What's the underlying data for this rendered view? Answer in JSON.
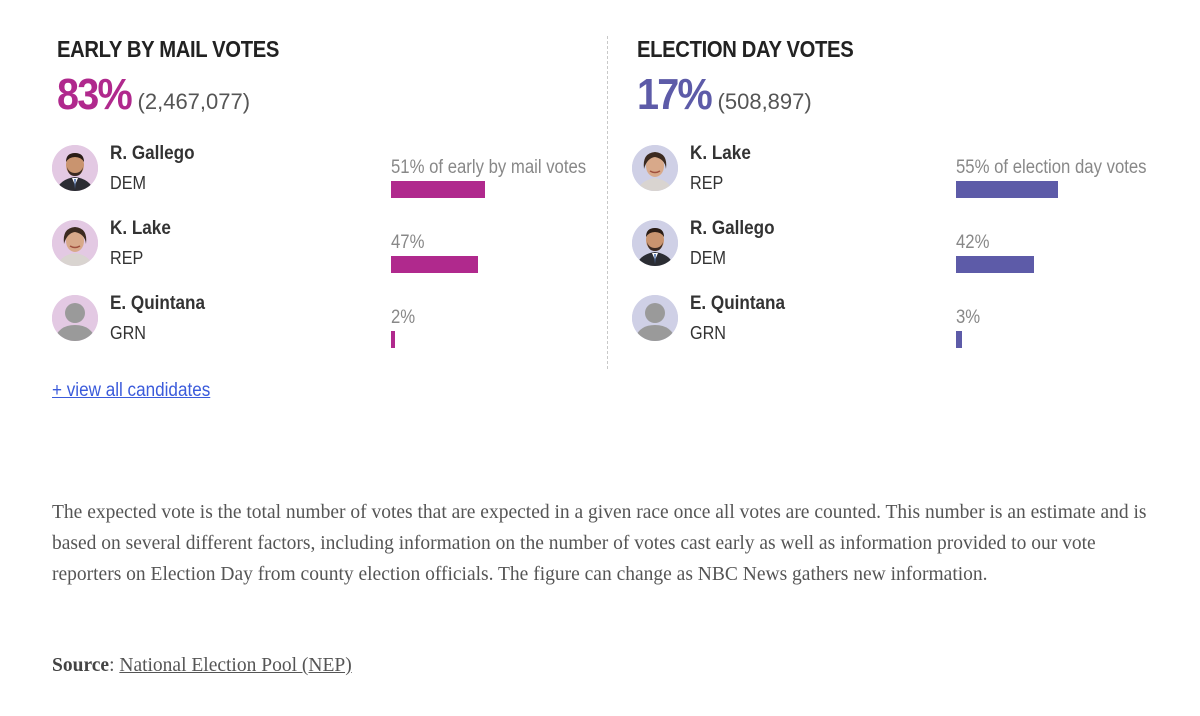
{
  "early": {
    "title": "EARLY BY MAIL VOTES",
    "percent": "83%",
    "count": "(2,467,077)",
    "color": "#b0298d",
    "candidates": [
      {
        "name": "R. Gallego",
        "party": "DEM",
        "label": "51% of early by mail votes",
        "share": 51,
        "icon": "gallego-photo"
      },
      {
        "name": "K. Lake",
        "party": "REP",
        "label": "47%",
        "share": 47,
        "icon": "lake-photo"
      },
      {
        "name": "E. Quintana",
        "party": "GRN",
        "label": "2%",
        "share": 2,
        "icon": "person-placeholder-icon"
      }
    ]
  },
  "eday": {
    "title": "ELECTION DAY VOTES",
    "percent": "17%",
    "count": "(508,897)",
    "color": "#5d5ba8",
    "candidates": [
      {
        "name": "K. Lake",
        "party": "REP",
        "label": "55% of election day votes",
        "share": 55,
        "icon": "lake-photo"
      },
      {
        "name": "R. Gallego",
        "party": "DEM",
        "label": "42%",
        "share": 42,
        "icon": "gallego-photo"
      },
      {
        "name": "E. Quintana",
        "party": "GRN",
        "label": "3%",
        "share": 3,
        "icon": "person-placeholder-icon"
      }
    ]
  },
  "view_all": "+ view all candidates",
  "note": "The expected vote is the total number of votes that are expected in a given race once all votes are counted. This number is an estimate and is based on several different factors, including information on the number of votes cast early as well as information provided to our vote reporters on Election Day from county election officials. The figure can change as NBC News gathers new information.",
  "source": {
    "label": "Source",
    "link": "National Election Pool (NEP)"
  }
}
